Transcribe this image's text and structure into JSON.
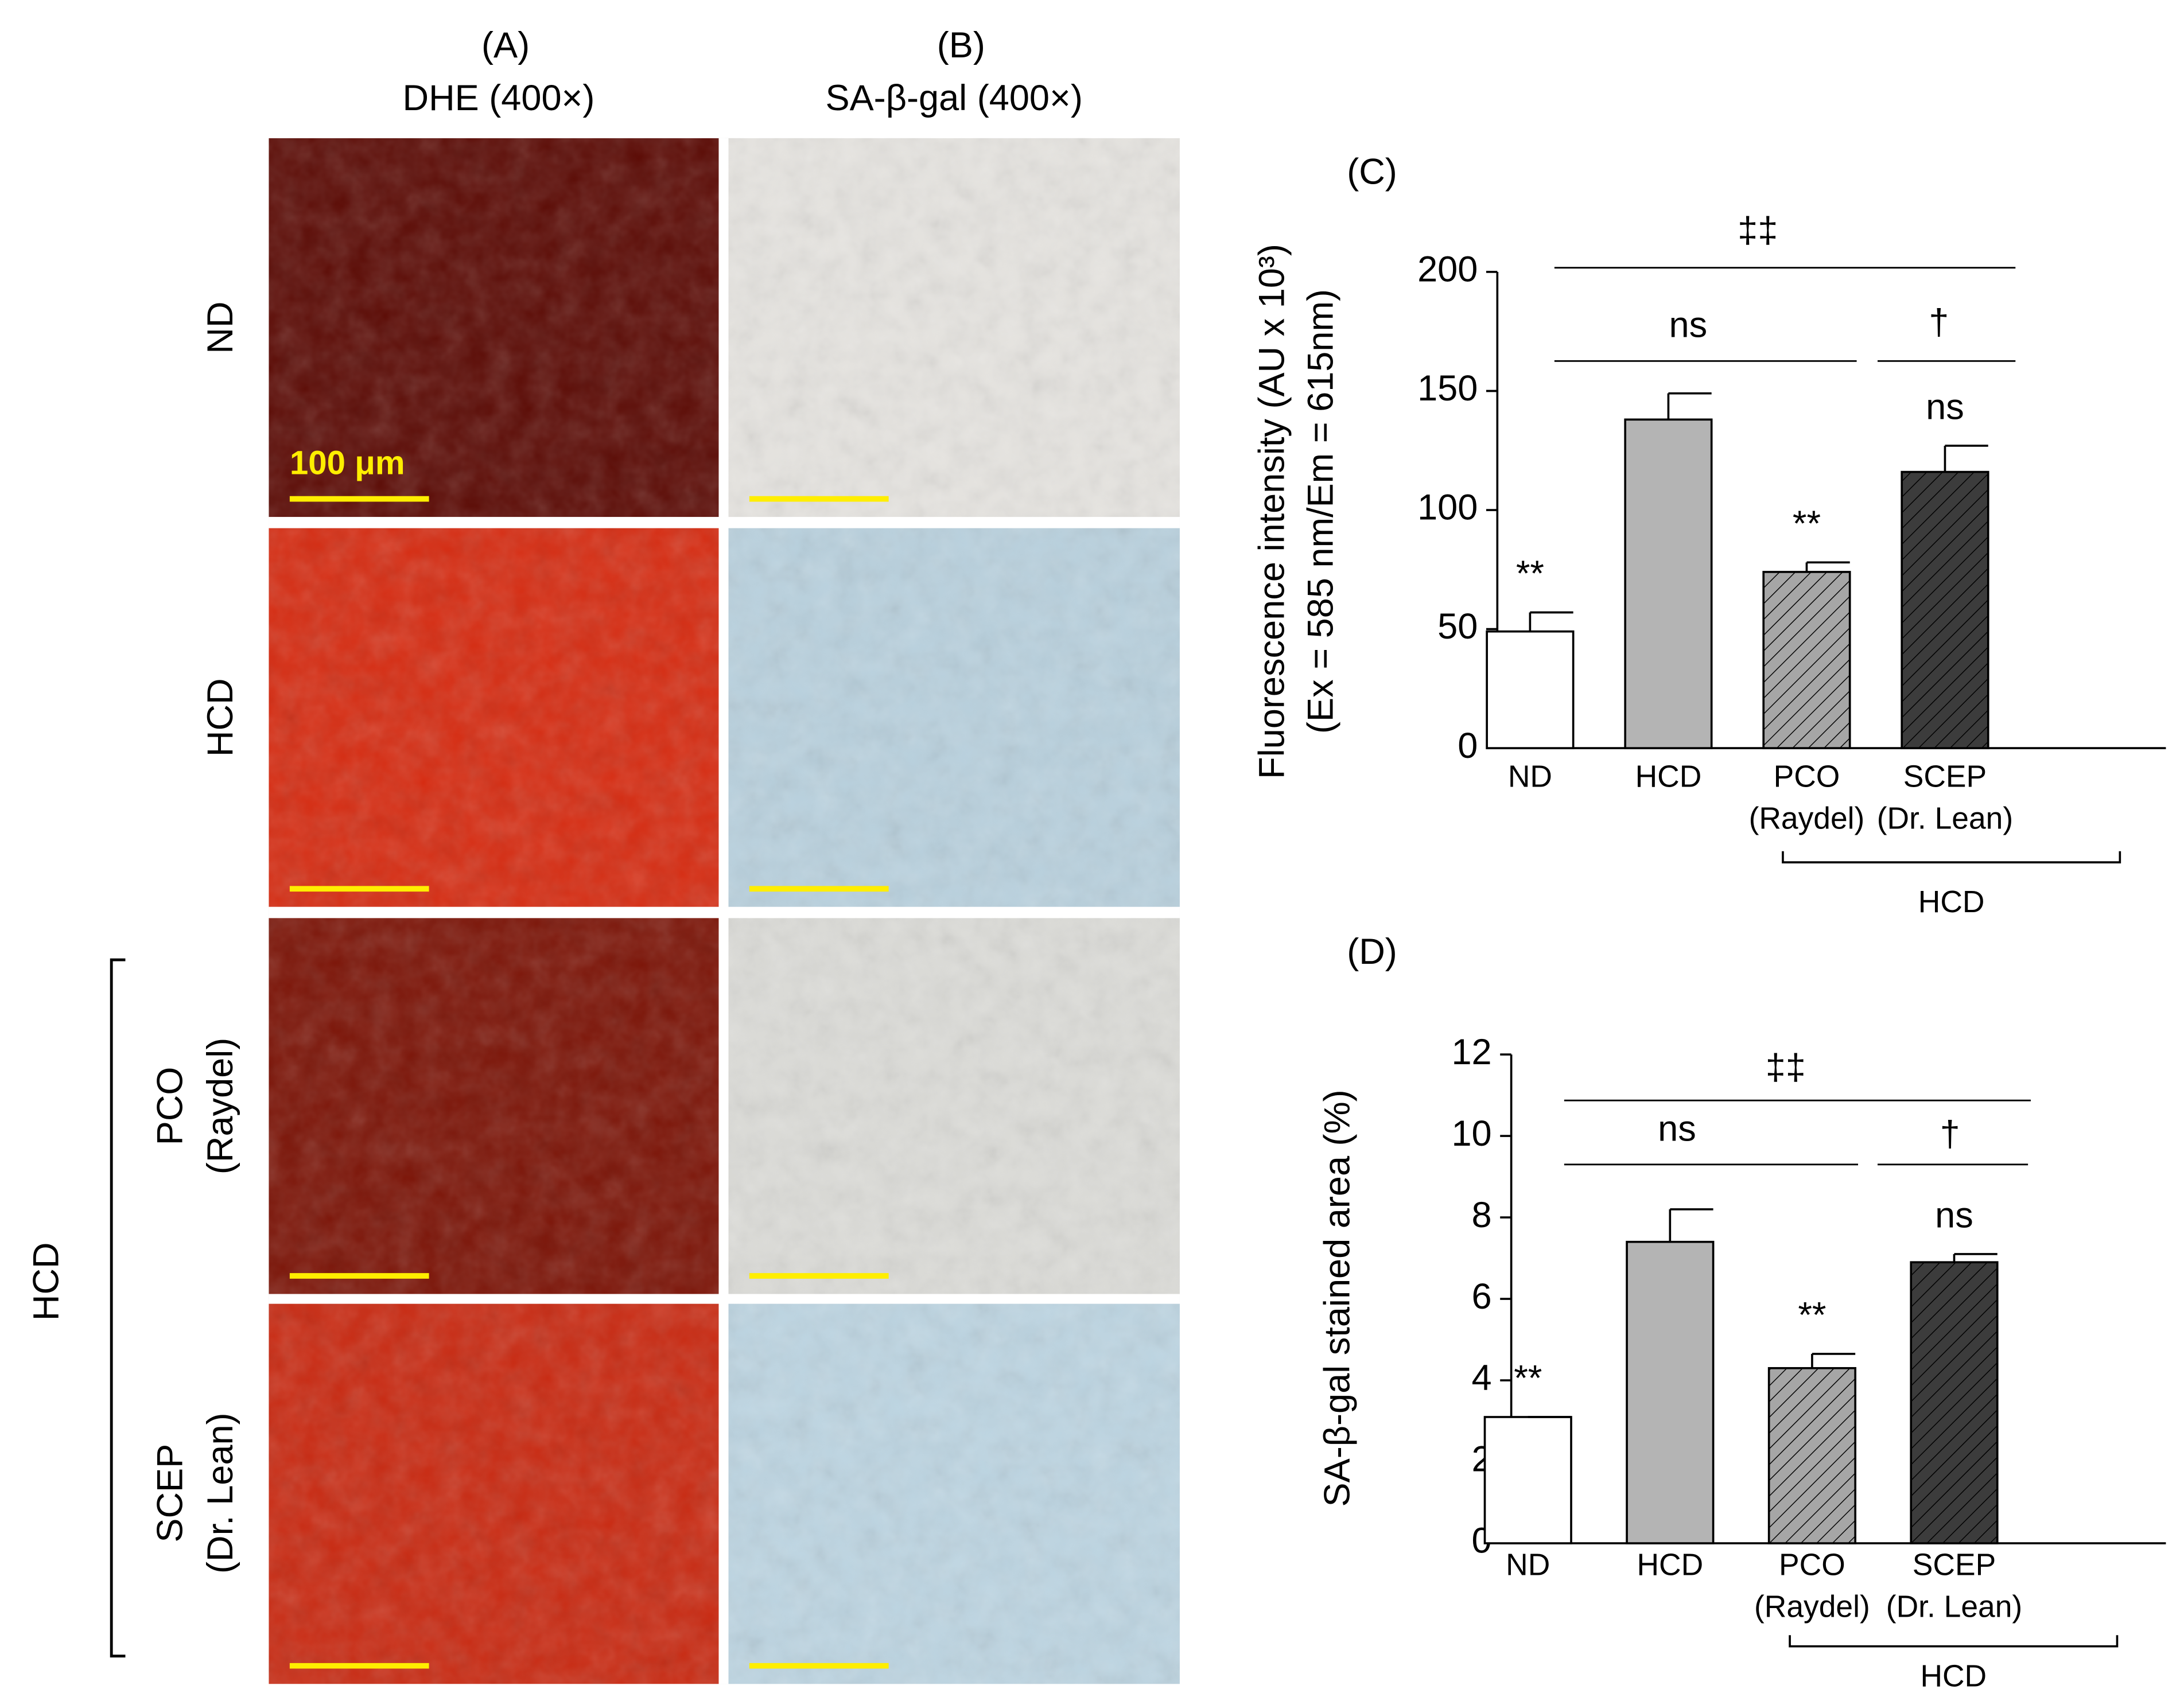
{
  "panels": {
    "a_label": "(A)",
    "a_title": "DHE (400×)",
    "b_label": "(B)",
    "b_title": "SA-β-gal (400×)",
    "rows": [
      [
        "ND"
      ],
      [
        "HCD"
      ],
      [
        "PCO",
        "(Raydel)"
      ],
      [
        "SCEP",
        "(Dr. Lean)"
      ]
    ],
    "group": "HCD",
    "scale_bar": "100 μm"
  },
  "chart_data": [
    {
      "type": "bar",
      "title": "(C)",
      "ylabel": [
        "Fluorescence intensity (AU x 10³)",
        "(Ex = 585 nm/Em = 615nm)"
      ],
      "categories": [
        [
          "ND"
        ],
        [
          "HCD"
        ],
        [
          "PCO",
          "(Raydel)"
        ],
        [
          "SCEP",
          "(Dr. Lean)"
        ]
      ],
      "values": [
        49,
        138,
        74,
        116
      ],
      "errors": [
        8,
        11,
        4,
        11
      ],
      "colors": [
        "#ffffff",
        "#b4b4b4",
        "#a6a6a6",
        "#3c3c3c"
      ],
      "hatch": [
        false,
        false,
        true,
        true
      ],
      "ylim": [
        0,
        200
      ],
      "yticks": [
        0,
        50,
        100,
        150,
        200
      ],
      "bar_marks": [
        "**",
        null,
        "**",
        "ns"
      ],
      "brackets": [
        "‡‡",
        "ns",
        "†"
      ],
      "group_label": "HCD"
    },
    {
      "type": "bar",
      "title": "(D)",
      "ylabel": [
        "SA-β-gal stained area (%)"
      ],
      "categories": [
        [
          "ND"
        ],
        [
          "HCD"
        ],
        [
          "PCO",
          "(Raydel)"
        ],
        [
          "SCEP",
          "(Dr. Lean)"
        ]
      ],
      "values": [
        3.1,
        7.4,
        4.3,
        6.9
      ],
      "errors": [
        0,
        0.8,
        0.35,
        0.2
      ],
      "colors": [
        "#ffffff",
        "#b4b4b4",
        "#a6a6a6",
        "#3c3c3c"
      ],
      "hatch": [
        false,
        false,
        true,
        true
      ],
      "ylim": [
        0,
        12
      ],
      "yticks": [
        0,
        2,
        4,
        6,
        8,
        10,
        12
      ],
      "bar_marks": [
        "**",
        null,
        "**",
        "ns"
      ],
      "brackets": [
        "‡‡",
        "ns",
        "†"
      ],
      "group_label": "HCD"
    }
  ]
}
